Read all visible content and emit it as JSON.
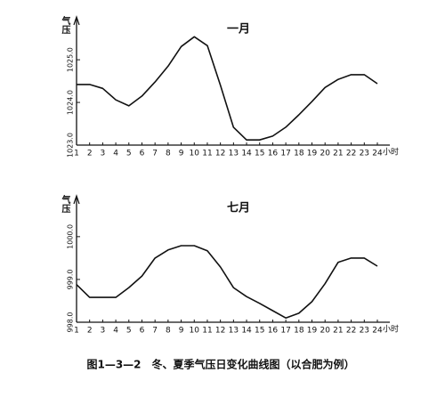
{
  "chart_data": [
    {
      "type": "line",
      "title": "一月",
      "y_label": "气压",
      "x_label": "小时",
      "x": [
        1,
        2,
        3,
        4,
        5,
        6,
        7,
        8,
        9,
        10,
        11,
        12,
        13,
        14,
        15,
        16,
        17,
        18,
        19,
        20,
        21,
        22,
        23,
        24
      ],
      "values": [
        1024.42,
        1024.42,
        1024.33,
        1024.06,
        1023.92,
        1024.15,
        1024.48,
        1024.85,
        1025.31,
        1025.54,
        1025.33,
        1024.4,
        1023.42,
        1023.12,
        1023.12,
        1023.21,
        1023.42,
        1023.71,
        1024.02,
        1024.35,
        1024.54,
        1024.65,
        1024.65,
        1024.44
      ],
      "color": "#111111",
      "xlim": [
        1,
        24
      ],
      "xticks": [
        1,
        2,
        3,
        4,
        5,
        6,
        7,
        8,
        9,
        10,
        11,
        12,
        13,
        14,
        15,
        16,
        17,
        18,
        19,
        20,
        21,
        22,
        23,
        24
      ],
      "ylim": [
        1023,
        1025.9
      ],
      "yticks": [
        {
          "value": 1023,
          "label": "1023.0"
        },
        {
          "value": 1024,
          "label": "1024.0"
        },
        {
          "value": 1025,
          "label": "1025.0"
        }
      ]
    },
    {
      "type": "line",
      "title": "七月",
      "y_label": "气压",
      "x_label": "小时",
      "x": [
        1,
        2,
        3,
        4,
        5,
        6,
        7,
        8,
        9,
        10,
        11,
        12,
        13,
        14,
        15,
        16,
        17,
        18,
        19,
        20,
        21,
        22,
        23,
        24
      ],
      "values": [
        998.88,
        998.58,
        998.58,
        998.58,
        998.81,
        999.08,
        999.5,
        999.69,
        999.79,
        999.79,
        999.67,
        999.29,
        998.81,
        998.6,
        998.44,
        998.27,
        998.1,
        998.21,
        998.48,
        998.9,
        999.4,
        999.5,
        999.5,
        999.31
      ],
      "color": "#111111",
      "xlim": [
        1,
        24
      ],
      "xticks": [
        1,
        2,
        3,
        4,
        5,
        6,
        7,
        8,
        9,
        10,
        11,
        12,
        13,
        14,
        15,
        16,
        17,
        18,
        19,
        20,
        21,
        22,
        23,
        24
      ],
      "ylim": [
        998,
        1000.85
      ],
      "yticks": [
        {
          "value": 998,
          "label": "998.0"
        },
        {
          "value": 999,
          "label": "999.0"
        },
        {
          "value": 1000,
          "label": "1000.0"
        }
      ]
    }
  ],
  "caption": "图1—3—2　冬、夏季气压日变化曲线图（以合肥为例）"
}
